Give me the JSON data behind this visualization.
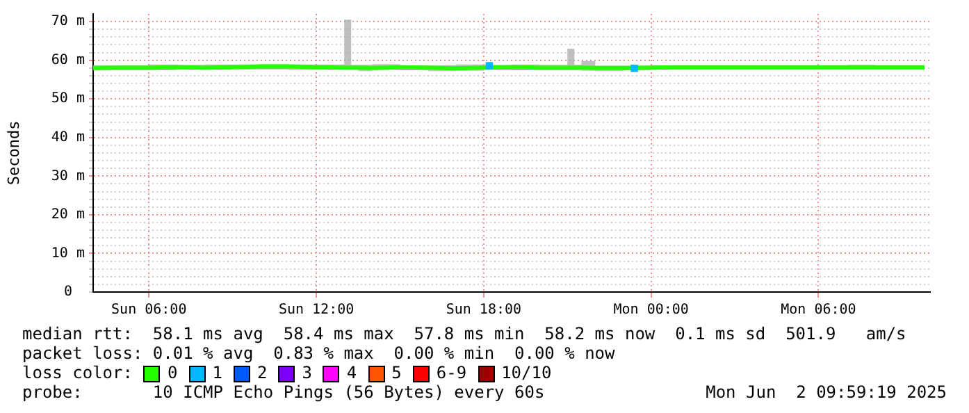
{
  "chart_data": {
    "type": "line",
    "ylabel": "Seconds",
    "legend_title": "loss color:",
    "legend": "bottom",
    "grid": true,
    "xlim": [
      "2025-06-01T04:00",
      "2025-06-02T10:00"
    ],
    "xticks": [
      {
        "value": "2025-06-01T06:00",
        "label": "Sun 06:00"
      },
      {
        "value": "2025-06-01T12:00",
        "label": "Sun 12:00"
      },
      {
        "value": "2025-06-01T18:00",
        "label": "Sun 18:00"
      },
      {
        "value": "2025-06-02T00:00",
        "label": "Mon 00:00"
      },
      {
        "value": "2025-06-02T06:00",
        "label": "Mon 06:00"
      }
    ],
    "ylim": [
      0,
      72
    ],
    "yticks": [
      0,
      {
        "value": 2,
        "label": null
      },
      {
        "value": 4,
        "label": null
      },
      {
        "value": 6,
        "label": null
      },
      {
        "value": 8,
        "label": null
      },
      {
        "value": 10,
        "label": "10 m"
      },
      {
        "value": 12,
        "label": null
      },
      {
        "value": 14,
        "label": null
      },
      {
        "value": 16,
        "label": null
      },
      {
        "value": 18,
        "label": null
      },
      {
        "value": 20,
        "label": "20 m"
      },
      {
        "value": 22,
        "label": null
      },
      {
        "value": 24,
        "label": null
      },
      {
        "value": 26,
        "label": null
      },
      {
        "value": 28,
        "label": null
      },
      {
        "value": 30,
        "label": "30 m"
      },
      {
        "value": 32,
        "label": null
      },
      {
        "value": 34,
        "label": null
      },
      {
        "value": 36,
        "label": null
      },
      {
        "value": 38,
        "label": null
      },
      {
        "value": 40,
        "label": "40 m"
      },
      {
        "value": 42,
        "label": null
      },
      {
        "value": 44,
        "label": null
      },
      {
        "value": 46,
        "label": null
      },
      {
        "value": 48,
        "label": null
      },
      {
        "value": 50,
        "label": "50 m"
      },
      {
        "value": 52,
        "label": null
      },
      {
        "value": 54,
        "label": null
      },
      {
        "value": 56,
        "label": null
      },
      {
        "value": 58,
        "label": null
      },
      {
        "value": 60,
        "label": "60 m"
      },
      {
        "value": 62,
        "label": null
      },
      {
        "value": 64,
        "label": null
      },
      {
        "value": 66,
        "label": null
      },
      {
        "value": 68,
        "label": null
      },
      {
        "value": 70,
        "label": "70 m"
      }
    ],
    "series": [
      {
        "name": "0",
        "color": "#26ff00",
        "x": [
          "2025-06-01T04:00",
          "2025-06-01T05:00",
          "2025-06-01T06:00",
          "2025-06-01T07:00",
          "2025-06-01T08:00",
          "2025-06-01T09:00",
          "2025-06-01T10:00",
          "2025-06-01T11:00",
          "2025-06-01T12:00",
          "2025-06-01T13:00",
          "2025-06-01T13:15",
          "2025-06-01T13:30",
          "2025-06-01T14:00",
          "2025-06-01T15:00",
          "2025-06-01T16:00",
          "2025-06-01T17:00",
          "2025-06-01T18:00",
          "2025-06-01T19:00",
          "2025-06-01T20:00",
          "2025-06-01T21:00",
          "2025-06-01T21:15",
          "2025-06-01T21:30",
          "2025-06-01T22:00",
          "2025-06-01T23:00",
          "2025-06-02T00:00",
          "2025-06-02T01:00",
          "2025-06-02T02:00",
          "2025-06-02T03:00",
          "2025-06-02T04:00",
          "2025-06-02T05:00",
          "2025-06-02T06:00",
          "2025-06-02T07:00",
          "2025-06-02T08:00",
          "2025-06-02T09:00",
          "2025-06-02T09:48"
        ],
        "values": [
          58.0,
          58.1,
          58.1,
          58.2,
          58.1,
          58.2,
          58.4,
          58.4,
          58.2,
          58.1,
          58.1,
          58.1,
          58.0,
          58.2,
          58.1,
          57.9,
          58.1,
          58.2,
          58.1,
          58.1,
          58.1,
          58.1,
          58.0,
          58.0,
          58.1,
          58.2,
          58.2,
          58.2,
          58.2,
          58.2,
          58.2,
          58.2,
          58.2,
          58.2,
          58.2
        ],
        "lower": [
          57.3,
          57.4,
          57.4,
          57.4,
          57.5,
          57.5,
          57.6,
          57.6,
          57.5,
          57.5,
          57.5,
          57.5,
          57.2,
          57.5,
          57.4,
          57.2,
          57.3,
          57.5,
          57.4,
          57.4,
          57.4,
          57.4,
          57.3,
          57.2,
          57.4,
          57.5,
          57.5,
          57.5,
          57.5,
          57.5,
          57.5,
          57.5,
          57.5,
          57.5,
          57.5
        ],
        "upper": [
          58.7,
          58.7,
          58.7,
          58.9,
          58.8,
          58.9,
          58.9,
          59.0,
          58.9,
          58.9,
          70.5,
          58.8,
          58.8,
          59.0,
          58.7,
          58.7,
          58.9,
          58.8,
          58.9,
          58.8,
          63.0,
          58.8,
          59.8,
          58.6,
          58.6,
          58.7,
          58.7,
          58.7,
          58.7,
          58.7,
          58.7,
          58.7,
          58.8,
          58.7,
          58.7
        ]
      },
      {
        "name": "1",
        "color": "#00b8ff",
        "type": "scatter",
        "marker": "square",
        "x": [
          "2025-06-01T18:12",
          "2025-06-01T23:24"
        ],
        "values": [
          58.6,
          57.9
        ]
      },
      {
        "name": "2",
        "color": "#0059ff"
      },
      {
        "name": "3",
        "color": "#7e00ff"
      },
      {
        "name": "4",
        "color": "#ff00ff"
      },
      {
        "name": "5",
        "color": "#ff5500"
      },
      {
        "name": "6-9",
        "color": "#ff0000"
      },
      {
        "name": "10/10",
        "color": "#a10000"
      }
    ],
    "annotations": [
      "median rtt:  58.1 ms avg  58.4 ms max  57.8 ms min  58.2 ms now  0.1 ms sd  501.9   am/s",
      "packet loss: 0.01 % avg  0.83 % max  0.00 % min  0.00 % now",
      "probe:       10 ICMP Echo Pings (56 Bytes) every 60s",
      "Mon Jun  2 09:59:19 2025"
    ]
  }
}
